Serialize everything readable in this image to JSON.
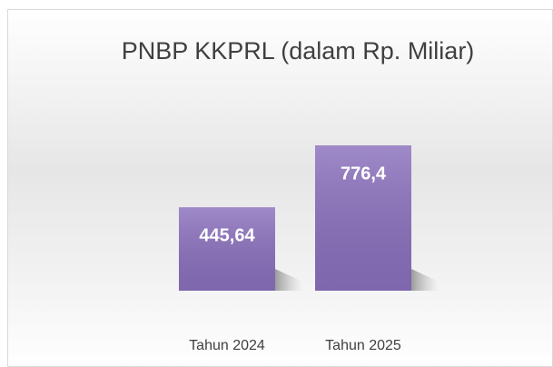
{
  "chart_data": {
    "type": "bar",
    "title": "PNBP KKPRL (dalam Rp. Miliar)",
    "categories": [
      "Tahun 2024",
      "Tahun 2025"
    ],
    "values": [
      445.64,
      776.4
    ],
    "value_labels": [
      "445,64",
      "776,4"
    ],
    "color": "#8a70bd"
  }
}
